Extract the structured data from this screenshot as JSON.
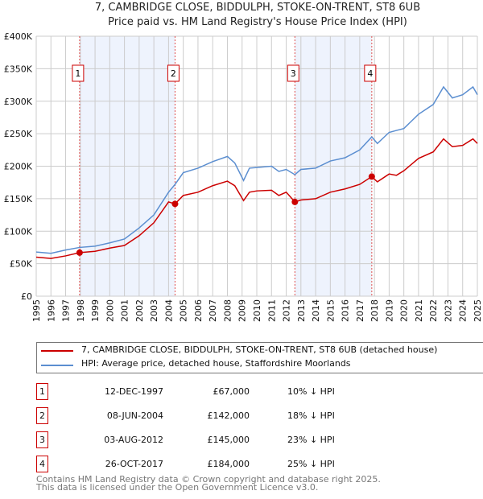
{
  "chart_data": {
    "type": "line",
    "title": "7, CAMBRIDGE CLOSE, BIDDULPH, STOKE-ON-TRENT, ST8 6UB",
    "subtitle": "Price paid vs. HM Land Registry's House Price Index (HPI)",
    "xlabel": "",
    "ylabel": "",
    "xlim": [
      1995,
      2025
    ],
    "ylim": [
      0,
      400000
    ],
    "x_ticks": [
      "1995",
      "1996",
      "1997",
      "1998",
      "1999",
      "2000",
      "2001",
      "2002",
      "2003",
      "2004",
      "2005",
      "2006",
      "2007",
      "2008",
      "2009",
      "2010",
      "2011",
      "2012",
      "2013",
      "2014",
      "2015",
      "2016",
      "2017",
      "2018",
      "2019",
      "2020",
      "2021",
      "2022",
      "2023",
      "2024",
      "2025"
    ],
    "y_ticks": [
      {
        "v": 0,
        "label": "£0"
      },
      {
        "v": 50000,
        "label": "£50K"
      },
      {
        "v": 100000,
        "label": "£100K"
      },
      {
        "v": 150000,
        "label": "£150K"
      },
      {
        "v": 200000,
        "label": "£200K"
      },
      {
        "v": 250000,
        "label": "£250K"
      },
      {
        "v": 300000,
        "label": "£300K"
      },
      {
        "v": 350000,
        "label": "£350K"
      },
      {
        "v": 400000,
        "label": "£400K"
      }
    ],
    "grid": true,
    "series": [
      {
        "name": "7, CAMBRIDGE CLOSE, BIDDULPH, STOKE-ON-TRENT, ST8 6UB (detached house)",
        "color": "#cc0000",
        "x": [
          1995,
          1996,
          1997,
          1997.95,
          1999,
          2000,
          2001,
          2002,
          2003,
          2004,
          2004.44,
          2005,
          2006,
          2007,
          2008,
          2008.5,
          2009.1,
          2009.5,
          2010,
          2011,
          2011.5,
          2012,
          2012.59,
          2013,
          2014,
          2015,
          2016,
          2017,
          2017.82,
          2018.2,
          2019,
          2019.5,
          2020,
          2021,
          2022,
          2022.7,
          2023.3,
          2024,
          2024.7,
          2025
        ],
        "y": [
          60000,
          58000,
          62000,
          67000,
          69000,
          74000,
          78000,
          93000,
          113000,
          145000,
          142000,
          155000,
          160000,
          170000,
          177000,
          170000,
          147000,
          160000,
          162000,
          163000,
          155000,
          160000,
          145000,
          148000,
          150000,
          160000,
          165000,
          172000,
          184000,
          176000,
          188000,
          186000,
          193000,
          212000,
          222000,
          242000,
          230000,
          232000,
          242000,
          235000
        ]
      },
      {
        "name": "HPI: Average price, detached house, Staffordshire Moorlands",
        "color": "#5b8ed0",
        "x": [
          1995,
          1996,
          1997,
          1997.95,
          1999,
          2000,
          2001,
          2002,
          2003,
          2004,
          2004.44,
          2005,
          2006,
          2007,
          2008,
          2008.5,
          2009.1,
          2009.5,
          2010,
          2011,
          2011.5,
          2012,
          2012.59,
          2013,
          2014,
          2015,
          2016,
          2017,
          2017.82,
          2018.2,
          2019,
          2019.5,
          2020,
          2021,
          2022,
          2022.7,
          2023.3,
          2024,
          2024.7,
          2025
        ],
        "y": [
          68000,
          66000,
          71000,
          75000,
          77000,
          82000,
          88000,
          105000,
          125000,
          160000,
          172000,
          190000,
          197000,
          207000,
          215000,
          205000,
          178000,
          197000,
          198000,
          200000,
          192000,
          195000,
          187000,
          195000,
          197000,
          208000,
          213000,
          225000,
          245000,
          235000,
          252000,
          255000,
          258000,
          280000,
          295000,
          322000,
          305000,
          310000,
          322000,
          310000
        ]
      }
    ],
    "sales": [
      {
        "n": "1",
        "x": 1997.95,
        "y": 67000,
        "date": "12-DEC-1997",
        "price": "£67,000",
        "hpi": "10% ↓ HPI"
      },
      {
        "n": "2",
        "x": 2004.44,
        "y": 142000,
        "date": "08-JUN-2004",
        "price": "£142,000",
        "hpi": "18% ↓ HPI"
      },
      {
        "n": "3",
        "x": 2012.59,
        "y": 145000,
        "date": "03-AUG-2012",
        "price": "£145,000",
        "hpi": "23% ↓ HPI"
      },
      {
        "n": "4",
        "x": 2017.82,
        "y": 184000,
        "date": "26-OCT-2017",
        "price": "£184,000",
        "hpi": "25% ↓ HPI"
      }
    ],
    "shaded": [
      [
        1997.95,
        2004.44
      ],
      [
        2012.59,
        2017.82
      ]
    ],
    "legend_position": "below"
  },
  "footer": [
    "Contains HM Land Registry data © Crown copyright and database right 2025.",
    "This data is licensed under the Open Government Licence v3.0."
  ]
}
